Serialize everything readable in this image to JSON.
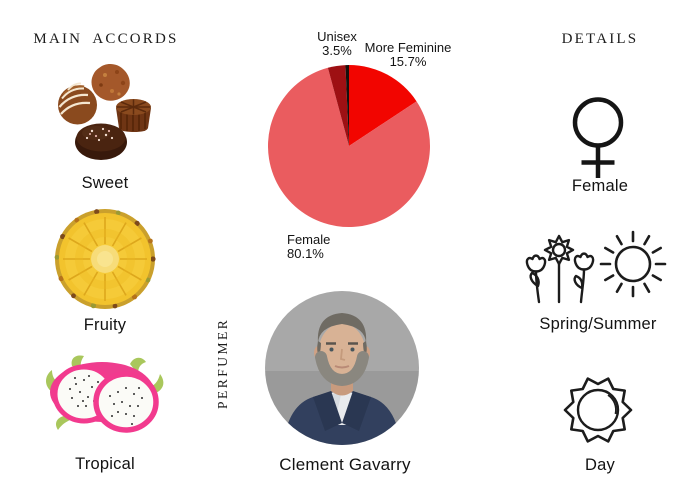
{
  "main_accords": {
    "heading": "MAIN ACCORDS",
    "items": [
      {
        "label": "Sweet",
        "icon": "chocolates-image"
      },
      {
        "label": "Fruity",
        "icon": "pineapple-slice-image"
      },
      {
        "label": "Tropical",
        "icon": "dragon-fruit-image"
      }
    ]
  },
  "chart_data": {
    "type": "pie",
    "title": "",
    "unit": "%",
    "start_angle_deg": -90,
    "direction": "clockwise",
    "legend_position": "none",
    "slices": [
      {
        "label": "More Feminine",
        "value": 15.7,
        "display": "15.7%",
        "color": "#f20500"
      },
      {
        "label": "Female",
        "value": 80.1,
        "display": "80.1%",
        "color": "#ea5c5f"
      },
      {
        "label": "Unisex",
        "value": 3.5,
        "display": "3.5%",
        "color": "#9e1013"
      },
      {
        "label": "",
        "value": 0.7,
        "display": "",
        "color": "#17100c"
      }
    ]
  },
  "perfumer": {
    "heading": "PERFUMER",
    "name": "Clement Gavarry"
  },
  "details": {
    "heading": "DETAILS",
    "items": [
      {
        "label": "Female",
        "icon": "female-symbol-icon"
      },
      {
        "label": "Spring/Summer",
        "icon": "flowers-and-sun-icons"
      },
      {
        "label": "Day",
        "icon": "day-sun-icon"
      }
    ]
  }
}
